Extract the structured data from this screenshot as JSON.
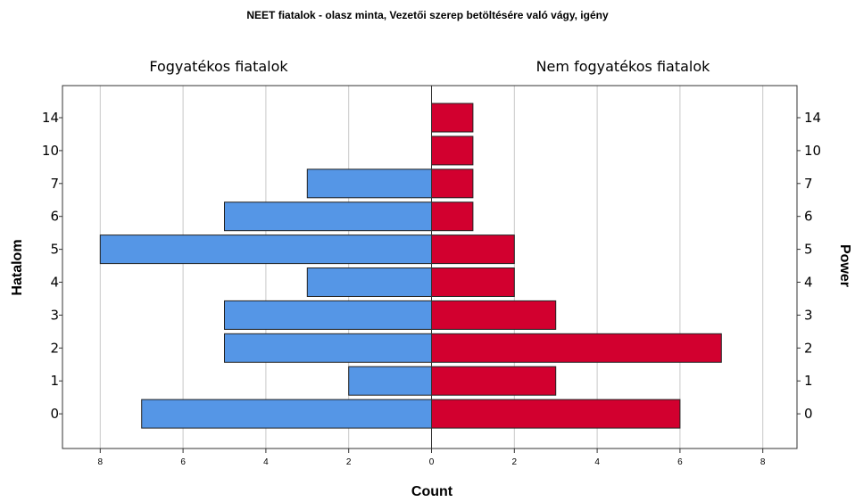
{
  "chart_data": {
    "type": "bar",
    "title": "NEET fiatalok - olasz minta, Vezetői szerep betöltésére való vágy, igény",
    "xlabel": "Count",
    "ylabel_left": "Hatalom",
    "ylabel_right": "Power",
    "categories": [
      "14",
      "10",
      "7",
      "6",
      "5",
      "4",
      "3",
      "2",
      "1",
      "0"
    ],
    "xlim": [
      0,
      8
    ],
    "xticks": [
      "8",
      "6",
      "4",
      "2",
      "0",
      "2",
      "4",
      "6",
      "8"
    ],
    "grid": true,
    "series": [
      {
        "name": "Fogyatékos fiatalok",
        "color": "#5596E6",
        "values": [
          0,
          0,
          3,
          5,
          8,
          3,
          5,
          5,
          2,
          7
        ]
      },
      {
        "name": "Nem fogyatékos fiatalok",
        "color": "#D2002F",
        "values": [
          1,
          1,
          1,
          1,
          2,
          2,
          3,
          7,
          3,
          6
        ]
      }
    ]
  }
}
